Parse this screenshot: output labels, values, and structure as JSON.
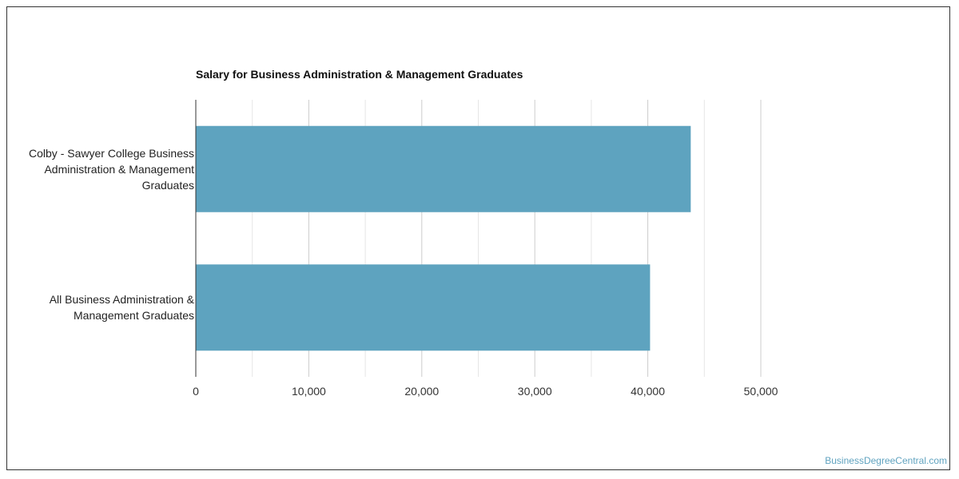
{
  "chart_data": {
    "type": "bar",
    "orientation": "horizontal",
    "title": "Salary for Business Administration & Management Graduates",
    "xlabel": "",
    "ylabel": "",
    "categories": [
      "Colby - Sawyer College Business Administration & Management Graduates",
      "All Business Administration & Management Graduates"
    ],
    "category_lines": [
      [
        "Colby - Sawyer College Business",
        "Administration & Management",
        "Graduates"
      ],
      [
        "All Business Administration &",
        "Management Graduates"
      ]
    ],
    "values": [
      43800,
      40200
    ],
    "xlim": [
      0,
      50000
    ],
    "ticks": [
      0,
      10000,
      20000,
      30000,
      40000,
      50000
    ],
    "tick_labels": [
      "0",
      "10,000",
      "20,000",
      "30,000",
      "40,000",
      "50,000"
    ],
    "grid": true,
    "bar_color": "#5ea3bf"
  },
  "watermark": "BusinessDegreeCentral.com"
}
